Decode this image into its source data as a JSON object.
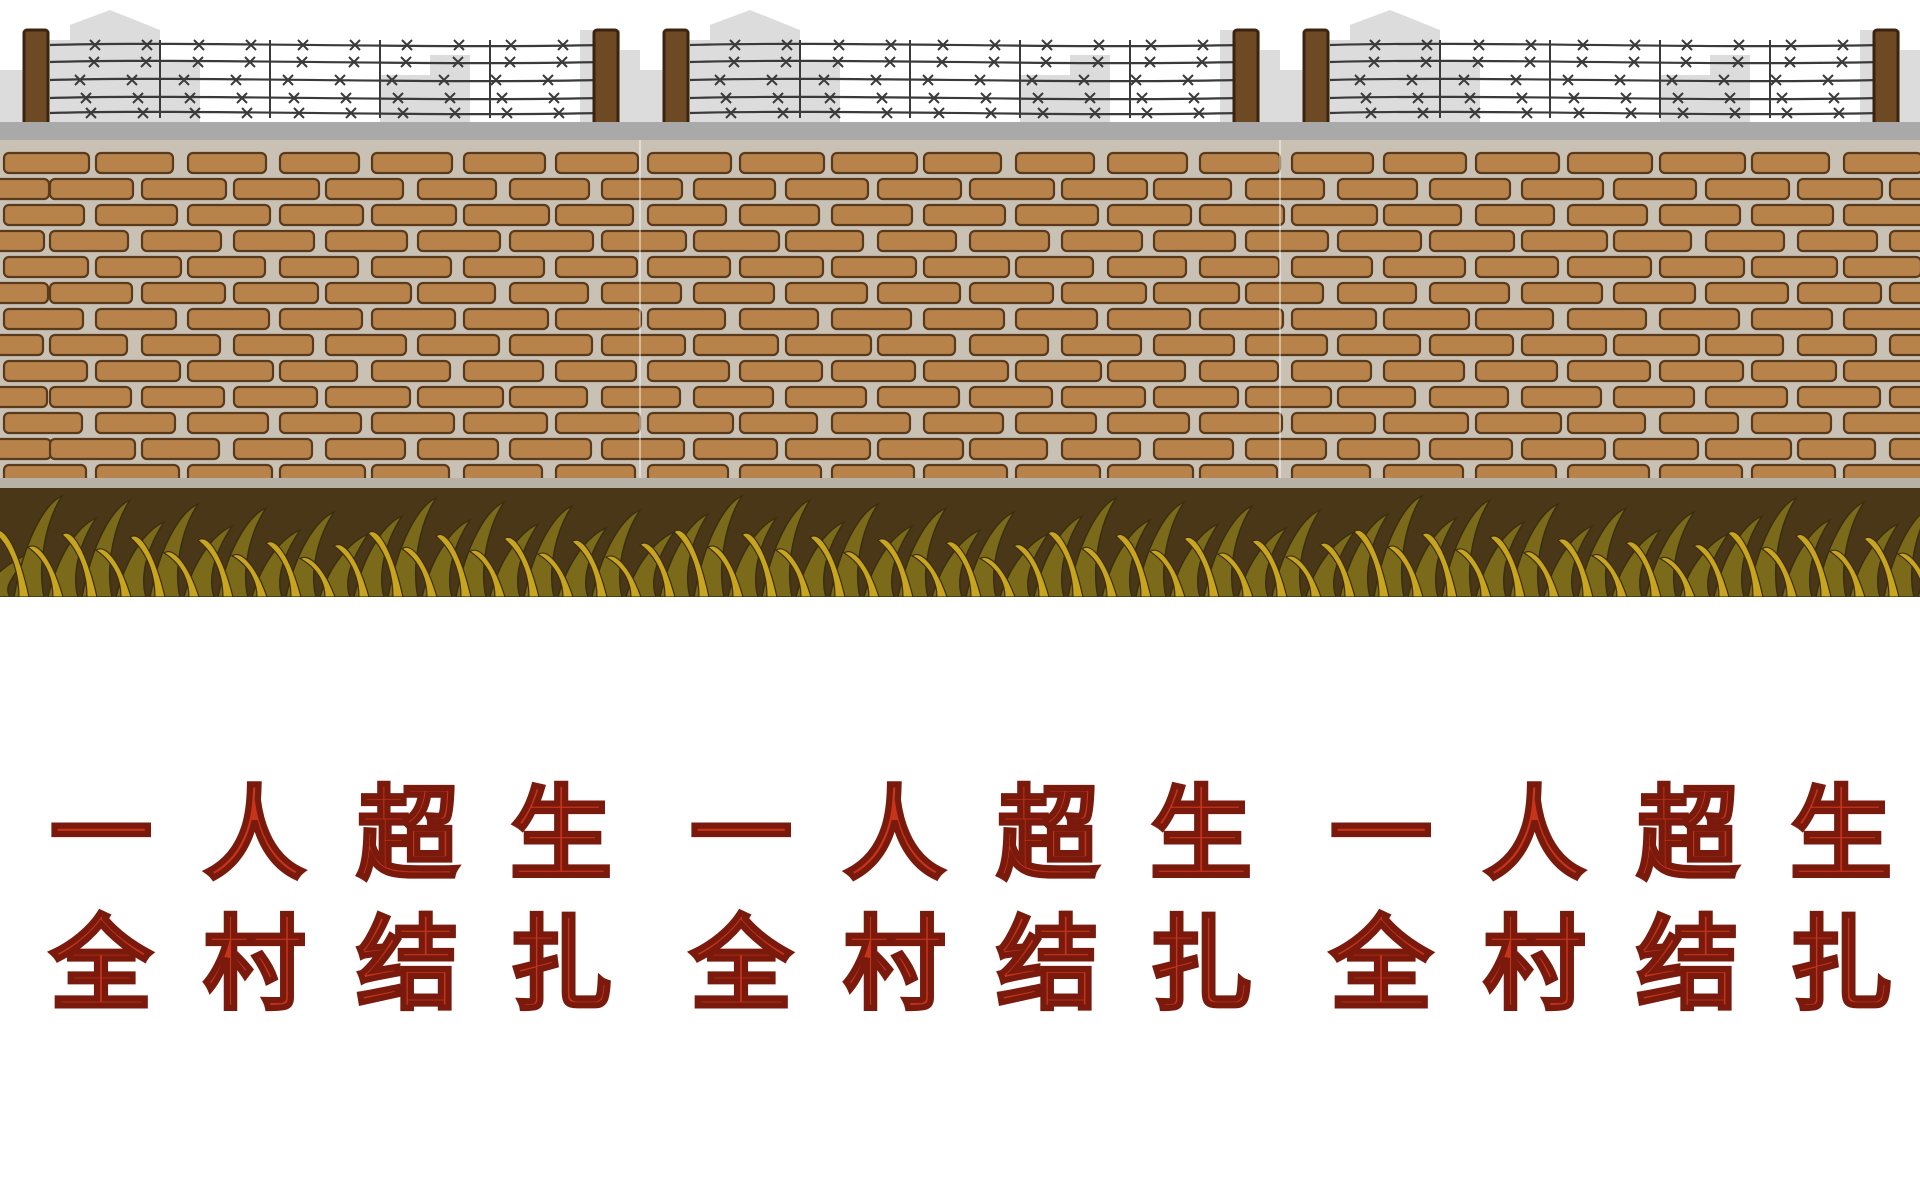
{
  "panels": [
    {
      "line1": [
        "一",
        "人",
        "超",
        "生"
      ],
      "line2": [
        "全",
        "村",
        "结",
        "扎"
      ]
    },
    {
      "line1": [
        "一",
        "人",
        "超",
        "生"
      ],
      "line2": [
        "全",
        "村",
        "结",
        "扎"
      ]
    },
    {
      "line1": [
        "一",
        "人",
        "超",
        "生"
      ],
      "line2": [
        "全",
        "村",
        "结",
        "扎"
      ]
    }
  ],
  "colors": {
    "brick": "#b8834a",
    "brick_outline": "#5a3a1c",
    "mortar": "#c9c2b4",
    "wall_cap": "#a9a9a9",
    "sky_building": "#dcdcdc",
    "post": "#6e4a24",
    "wire": "#3a3a3a",
    "ground": "#4a3718",
    "grass": "#c9a51f",
    "grass_dark": "#7a6a1a",
    "slogan_fill": "#c7331b",
    "slogan_outline": "#ffffff"
  },
  "icons": [
    "barbed-wire-icon",
    "fence-post-icon"
  ]
}
